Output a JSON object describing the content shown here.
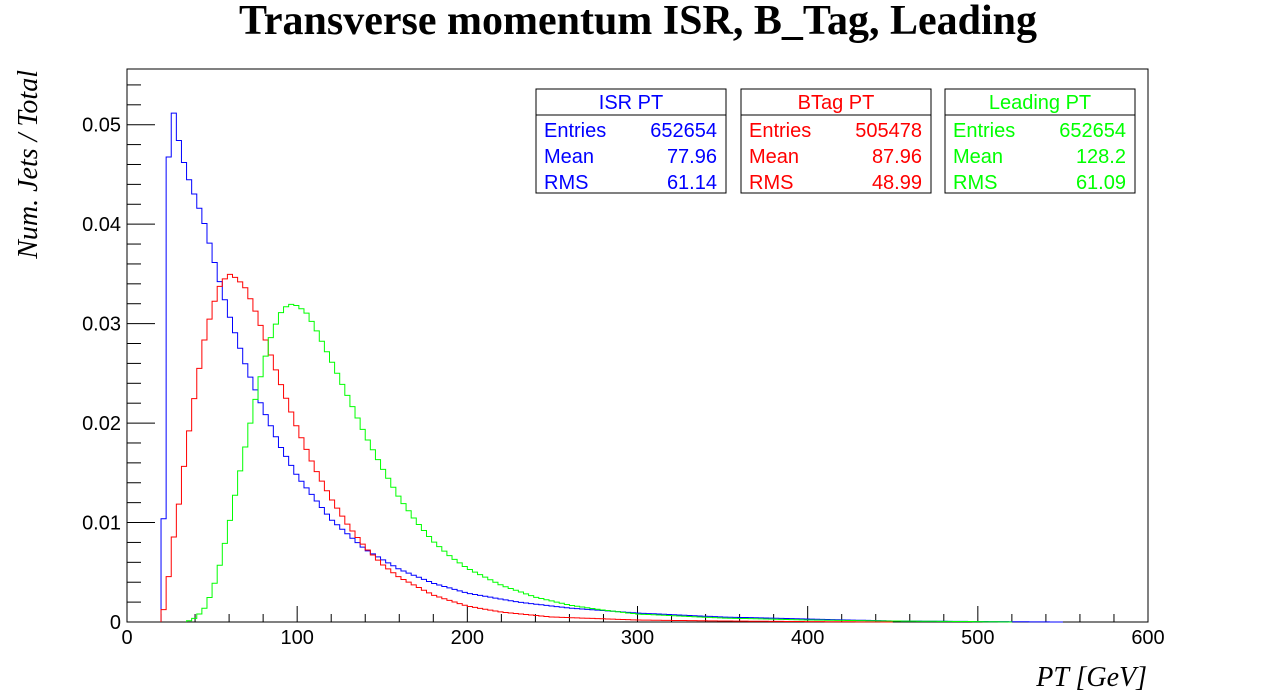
{
  "chart_data": {
    "type": "histogram",
    "title": "Transverse momentum ISR, B_Tag, Leading",
    "xlabel": "PT [GeV]",
    "ylabel": "Num. Jets / Total",
    "xlim": [
      0,
      600
    ],
    "ylim": [
      0,
      0.0556
    ],
    "x_ticks": [
      0,
      100,
      200,
      300,
      400,
      500,
      600
    ],
    "y_ticks": [
      0,
      0.01,
      0.02,
      0.03,
      0.04,
      0.05
    ],
    "x_tick_labels": [
      "0",
      "100",
      "200",
      "300",
      "400",
      "500",
      "600"
    ],
    "y_tick_labels": [
      "0",
      "0.01",
      "0.02",
      "0.03",
      "0.04",
      "0.05"
    ],
    "bin_width": 3,
    "bin_start": 0,
    "series": [
      {
        "name": "ISR PT",
        "color": "#0000ff",
        "stats": {
          "entries": "652654",
          "mean": "77.96",
          "rms": "61.14"
        },
        "points": [
          [
            20,
            0
          ],
          [
            21,
            0.0045
          ],
          [
            23,
            0.028
          ],
          [
            25,
            0.053
          ],
          [
            28,
            0.0508
          ],
          [
            30,
            0.0488
          ],
          [
            33,
            0.0465
          ],
          [
            36,
            0.0447
          ],
          [
            40,
            0.0428
          ],
          [
            45,
            0.0404
          ],
          [
            50,
            0.0371
          ],
          [
            55,
            0.0339
          ],
          [
            60,
            0.0309
          ],
          [
            70,
            0.0257
          ],
          [
            80,
            0.0214
          ],
          [
            90,
            0.0177
          ],
          [
            100,
            0.0147
          ],
          [
            120,
            0.0103
          ],
          [
            140,
            0.0073
          ],
          [
            160,
            0.0053
          ],
          [
            180,
            0.0039
          ],
          [
            200,
            0.0029
          ],
          [
            230,
            0.002
          ],
          [
            260,
            0.0014
          ],
          [
            300,
            0.0009
          ],
          [
            350,
            0.0005
          ],
          [
            400,
            0.0003
          ],
          [
            450,
            0.0001
          ],
          [
            500,
            5e-05
          ],
          [
            550,
            0
          ]
        ]
      },
      {
        "name": "BTag PT",
        "color": "#ff0000",
        "stats": {
          "entries": "505478",
          "mean": "87.96",
          "rms": "48.99"
        },
        "points": [
          [
            20,
            0
          ],
          [
            23,
            0.0025
          ],
          [
            27,
            0.008
          ],
          [
            31,
            0.0124
          ],
          [
            35,
            0.0176
          ],
          [
            40,
            0.023
          ],
          [
            45,
            0.028
          ],
          [
            50,
            0.0315
          ],
          [
            55,
            0.034
          ],
          [
            60,
            0.035
          ],
          [
            65,
            0.0345
          ],
          [
            70,
            0.0335
          ],
          [
            75,
            0.0315
          ],
          [
            80,
            0.0291
          ],
          [
            90,
            0.0241
          ],
          [
            100,
            0.0195
          ],
          [
            110,
            0.0156
          ],
          [
            120,
            0.0124
          ],
          [
            130,
            0.0097
          ],
          [
            140,
            0.0075
          ],
          [
            150,
            0.0058
          ],
          [
            160,
            0.0045
          ],
          [
            180,
            0.0027
          ],
          [
            200,
            0.0016
          ],
          [
            220,
            0.001
          ],
          [
            250,
            0.0005
          ],
          [
            300,
            0.0002
          ],
          [
            350,
            0.0001
          ],
          [
            400,
            4e-05
          ],
          [
            450,
            0
          ]
        ]
      },
      {
        "name": "Leading PT",
        "color": "#00ff00",
        "stats": {
          "entries": "652654",
          "mean": "128.2",
          "rms": "61.09"
        },
        "points": [
          [
            35,
            0
          ],
          [
            40,
            0.0004
          ],
          [
            45,
            0.0012
          ],
          [
            50,
            0.003
          ],
          [
            55,
            0.006
          ],
          [
            60,
            0.0098
          ],
          [
            65,
            0.014
          ],
          [
            70,
            0.018
          ],
          [
            75,
            0.022
          ],
          [
            80,
            0.0258
          ],
          [
            85,
            0.0289
          ],
          [
            90,
            0.031
          ],
          [
            95,
            0.032
          ],
          [
            100,
            0.0318
          ],
          [
            105,
            0.0312
          ],
          [
            110,
            0.0298
          ],
          [
            120,
            0.0263
          ],
          [
            130,
            0.0226
          ],
          [
            140,
            0.0188
          ],
          [
            150,
            0.0155
          ],
          [
            160,
            0.0125
          ],
          [
            170,
            0.0101
          ],
          [
            180,
            0.0081
          ],
          [
            190,
            0.0066
          ],
          [
            200,
            0.0054
          ],
          [
            220,
            0.0037
          ],
          [
            240,
            0.0025
          ],
          [
            260,
            0.0017
          ],
          [
            280,
            0.0012
          ],
          [
            300,
            0.0008
          ],
          [
            350,
            0.0004
          ],
          [
            400,
            0.0002
          ],
          [
            450,
            0.0001
          ],
          [
            500,
            4e-05
          ],
          [
            520,
            0
          ]
        ]
      }
    ],
    "stat_labels": {
      "entries": "Entries",
      "mean": "Mean",
      "rms": "RMS"
    }
  }
}
